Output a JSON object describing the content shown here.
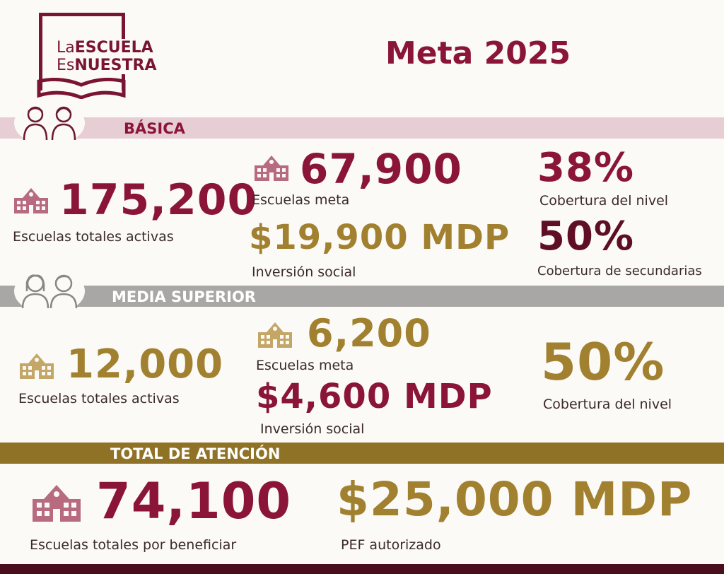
{
  "logo": {
    "line1_a": "La",
    "line1_b": "ESCUELA",
    "line2_a": "Es",
    "line2_b": "NUESTRA"
  },
  "title": "Meta 2025",
  "basica": {
    "section_label": "BÁSICA",
    "total_value": "175,200",
    "total_label": "Escuelas totales activas",
    "meta_value": "67,900",
    "meta_label": "Escuelas meta",
    "inversion_value": "$19,900 MDP",
    "inversion_label": "Inversión social",
    "cobertura_value": "38%",
    "cobertura_label": "Cobertura del nivel",
    "secundarias_value": "50%",
    "secundarias_label": "Cobertura de secundarias"
  },
  "media_superior": {
    "section_label": "MEDIA SUPERIOR",
    "total_value": "12,000",
    "total_label": "Escuelas totales activas",
    "meta_value": "6,200",
    "meta_label": "Escuelas meta",
    "inversion_value": "$4,600 MDP",
    "inversion_label": "Inversión social",
    "cobertura_value": "50%",
    "cobertura_label": "Cobertura del nivel"
  },
  "total": {
    "section_label": "TOTAL DE ATENCIÓN",
    "escuelas_value": "74,100",
    "escuelas_label": "Escuelas totales por beneficiar",
    "pef_value": "$25,000 MDP",
    "pef_label": "PEF autorizado"
  },
  "colors": {
    "wine": "#8a1538",
    "gold": "#a1812f",
    "gray_band": "#a9a7a5",
    "pink_band": "#e7cdd4",
    "gold_band": "#8f7225"
  }
}
